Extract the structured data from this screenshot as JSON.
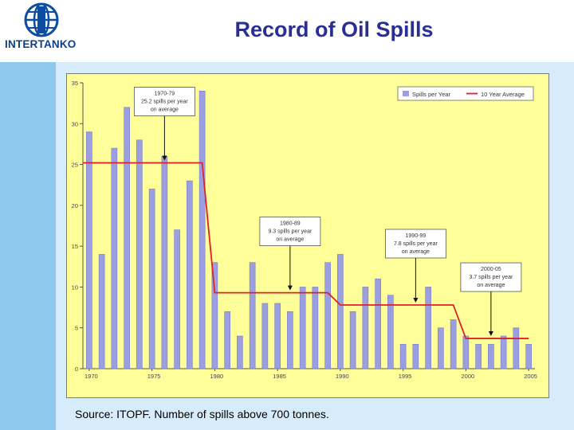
{
  "header": {
    "logo_text": "INTERTANKO",
    "title": "Record of Oil Spills"
  },
  "footer": {
    "source": "Source: ITOPF. Number of spills above 700 tonnes."
  },
  "colors": {
    "plot_background": "#ffff99",
    "bar": "#9b9ee0",
    "average_line": "#e0202a",
    "title": "#2a2f96"
  },
  "chart_data": {
    "type": "bar",
    "title": "",
    "xlabel": "",
    "ylabel": "",
    "ylim": [
      0,
      35
    ],
    "yticks": [
      0,
      5,
      10,
      15,
      20,
      25,
      30,
      35
    ],
    "xtick_labels": [
      "1970",
      "1975",
      "1980",
      "1985",
      "1990",
      "1995",
      "2000",
      "2005"
    ],
    "grid": false,
    "legend_position": "top-right",
    "categories": [
      "1970",
      "1971",
      "1972",
      "1973",
      "1974",
      "1975",
      "1976",
      "1977",
      "1978",
      "1979",
      "1980",
      "1981",
      "1982",
      "1983",
      "1984",
      "1985",
      "1986",
      "1987",
      "1988",
      "1989",
      "1990",
      "1991",
      "1992",
      "1993",
      "1994",
      "1995",
      "1996",
      "1997",
      "1998",
      "1999",
      "2000",
      "2001",
      "2002",
      "2003",
      "2004",
      "2005"
    ],
    "series": [
      {
        "name": "Spills per Year",
        "kind": "bar",
        "values": [
          29,
          14,
          27,
          32,
          28,
          22,
          26,
          17,
          23,
          34,
          13,
          7,
          4,
          13,
          8,
          8,
          7,
          10,
          10,
          13,
          14,
          7,
          10,
          11,
          9,
          3,
          3,
          10,
          5,
          6,
          4,
          3,
          3,
          4,
          5,
          3
        ]
      },
      {
        "name": "10 Year Average",
        "kind": "step",
        "segments": [
          {
            "from": "1970",
            "to": "1979",
            "value": 25.2
          },
          {
            "from": "1980",
            "to": "1989",
            "value": 9.3
          },
          {
            "from": "1990",
            "to": "1999",
            "value": 7.8
          },
          {
            "from": "2000",
            "to": "2005",
            "value": 3.7
          }
        ]
      }
    ],
    "annotations": [
      {
        "year": "1976",
        "lines": [
          "1970-79",
          "25.2 spills per year",
          "on average"
        ]
      },
      {
        "year": "1986",
        "lines": [
          "1980-89",
          "9.3 spills per year",
          "on average"
        ]
      },
      {
        "year": "1996",
        "lines": [
          "1990-99",
          "7.8 spills per year",
          "on average"
        ]
      },
      {
        "year": "2002",
        "lines": [
          "2000-05",
          "3.7 spills per year",
          "on average"
        ]
      }
    ]
  }
}
